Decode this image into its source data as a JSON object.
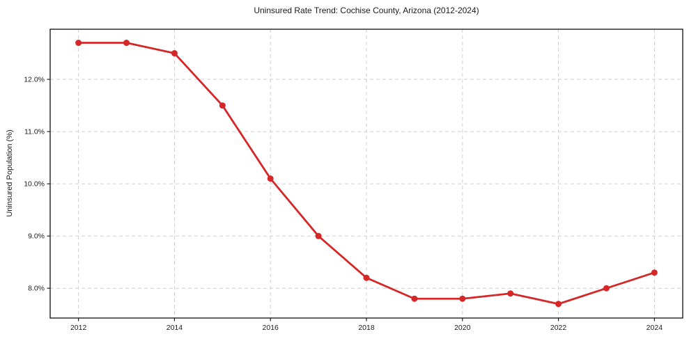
{
  "chart_data": {
    "type": "line",
    "title": "Uninsured Rate Trend: Cochise County, Arizona (2012-2024)",
    "xlabel": "",
    "ylabel": "Uninsured Population (%)",
    "x": [
      2012,
      2013,
      2014,
      2015,
      2016,
      2017,
      2018,
      2019,
      2020,
      2021,
      2022,
      2023,
      2024
    ],
    "values": [
      12.7,
      12.7,
      12.5,
      11.5,
      10.1,
      9.0,
      8.2,
      7.8,
      7.8,
      7.9,
      7.7,
      8.0,
      8.3
    ],
    "xticks": {
      "values": [
        2012,
        2014,
        2016,
        2018,
        2020,
        2022,
        2024
      ],
      "labels": [
        "2012",
        "2014",
        "2016",
        "2018",
        "2020",
        "2022",
        "2024"
      ]
    },
    "yticks": {
      "values": [
        8,
        9,
        10,
        11,
        12
      ],
      "labels": [
        "8.0%",
        "9.0%",
        "10.0%",
        "11.0%",
        "12.0%"
      ]
    },
    "xlim": [
      2011.41,
      2024.59
    ],
    "ylim": [
      7.43,
      12.96
    ],
    "grid": true,
    "grid_style": "dashed",
    "legend": false,
    "line_color": "#d62728",
    "marker": "circle",
    "grid_color": "#cfcfcf",
    "axis_color": "#1f1f1f",
    "background_color": "#ffffff"
  }
}
